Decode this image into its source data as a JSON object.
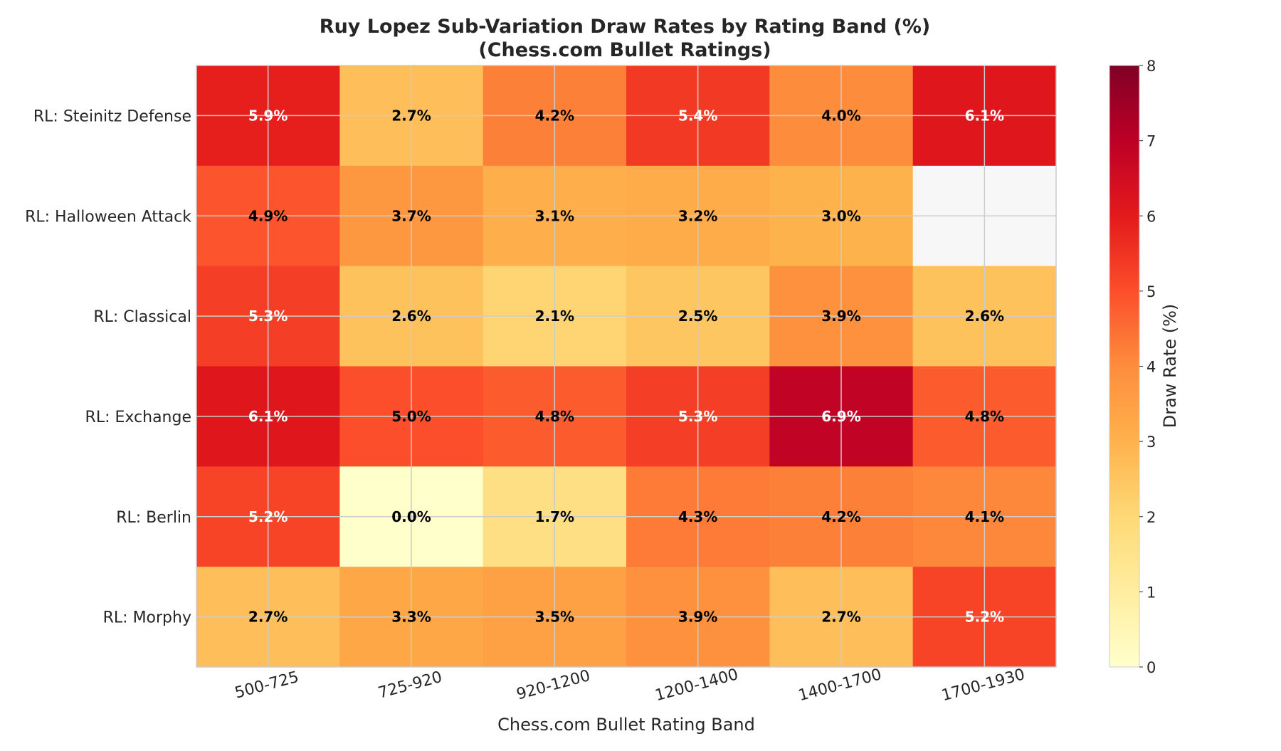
{
  "chart_data": {
    "type": "heatmap",
    "title": "Ruy Lopez Sub-Variation Draw Rates by Rating Band (%)",
    "subtitle": "(Chess.com Bullet Ratings)",
    "xlabel": "Chess.com Bullet Rating Band",
    "colorbar_label": "Draw Rate (%)",
    "colorbar_range": [
      0,
      8
    ],
    "colorbar_ticks": [
      "0",
      "1",
      "2",
      "3",
      "4",
      "5",
      "6",
      "7",
      "8"
    ],
    "colormap": "YlOrRd",
    "missing_color": "#f7f7f7",
    "grid": true,
    "x_categories": [
      "500-725",
      "725-920",
      "920-1200",
      "1200-1400",
      "1400-1700",
      "1700-1930"
    ],
    "y_categories": [
      "RL: Steinitz Defense",
      "RL: Halloween Attack",
      "RL: Classical",
      "RL: Exchange",
      "RL: Berlin",
      "RL: Morphy"
    ],
    "values": [
      [
        5.9,
        2.7,
        4.2,
        5.4,
        4.0,
        6.1
      ],
      [
        4.9,
        3.7,
        3.1,
        3.2,
        3.0,
        null
      ],
      [
        5.3,
        2.6,
        2.1,
        2.5,
        3.9,
        2.6
      ],
      [
        6.1,
        5.0,
        4.8,
        5.3,
        6.9,
        4.8
      ],
      [
        5.2,
        0.0,
        1.7,
        4.3,
        4.2,
        4.1
      ],
      [
        2.7,
        3.3,
        3.5,
        3.9,
        2.7,
        5.2
      ]
    ],
    "cell_labels": [
      [
        "5.9%",
        "2.7%",
        "4.2%",
        "5.4%",
        "4.0%",
        "6.1%"
      ],
      [
        "4.9%",
        "3.7%",
        "3.1%",
        "3.2%",
        "3.0%",
        ""
      ],
      [
        "5.3%",
        "2.6%",
        "2.1%",
        "2.5%",
        "3.9%",
        "2.6%"
      ],
      [
        "6.1%",
        "5.0%",
        "4.8%",
        "5.3%",
        "6.9%",
        "4.8%"
      ],
      [
        "5.2%",
        "0.0%",
        "1.7%",
        "4.3%",
        "4.2%",
        "4.1%"
      ],
      [
        "2.7%",
        "3.3%",
        "3.5%",
        "3.9%",
        "2.7%",
        "5.2%"
      ]
    ]
  }
}
